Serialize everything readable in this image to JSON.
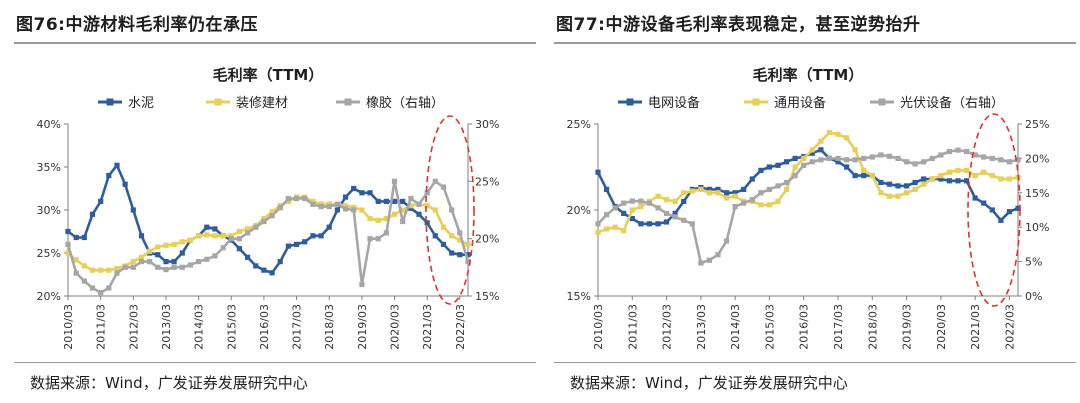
{
  "figures": [
    {
      "number": "图76:",
      "caption": "中游材料毛利率仍在承压",
      "source": "数据来源：Wind，广发证券发展研究中心"
    },
    {
      "number": "图77:",
      "caption": "中游设备毛利率表现稳定，甚至逆势抬升",
      "source": "数据来源：Wind，广发证券发展研究中心"
    }
  ],
  "chart_data": [
    {
      "type": "line",
      "title": "毛利率（TTM）",
      "x_tick_labels": [
        "2010/03",
        "2011/03",
        "2012/03",
        "2013/03",
        "2014/03",
        "2015/03",
        "2016/03",
        "2017/03",
        "2018/03",
        "2019/03",
        "2020/03",
        "2021/03",
        "2022/03"
      ],
      "x": [
        2010.0,
        2010.25,
        2010.5,
        2010.75,
        2011.0,
        2011.25,
        2011.5,
        2011.75,
        2012.0,
        2012.25,
        2012.5,
        2012.75,
        2013.0,
        2013.25,
        2013.5,
        2013.75,
        2014.0,
        2014.25,
        2014.5,
        2014.75,
        2015.0,
        2015.25,
        2015.5,
        2015.75,
        2016.0,
        2016.25,
        2016.5,
        2016.75,
        2017.0,
        2017.25,
        2017.5,
        2017.75,
        2018.0,
        2018.25,
        2018.5,
        2018.75,
        2019.0,
        2019.25,
        2019.5,
        2019.75,
        2020.0,
        2020.25,
        2020.5,
        2020.75,
        2021.0,
        2021.25,
        2021.5,
        2021.75,
        2022.0,
        2022.25
      ],
      "y_left": {
        "min": 20,
        "max": 40,
        "ticks": [
          "20%",
          "25%",
          "30%",
          "35%",
          "40%"
        ]
      },
      "y_right": {
        "min": 15,
        "max": 30,
        "ticks": [
          "15%",
          "20%",
          "25%",
          "30%"
        ]
      },
      "series": [
        {
          "name": "水泥",
          "axis": "left",
          "color": "#2e5d9e",
          "marker": "square",
          "values": [
            27.5,
            26.8,
            26.8,
            29.5,
            31.0,
            34.0,
            35.2,
            33.0,
            30.0,
            27.0,
            25.0,
            24.8,
            24.0,
            24.0,
            25.0,
            26.5,
            27.0,
            28.0,
            27.8,
            27.0,
            26.5,
            25.5,
            24.5,
            23.5,
            23.0,
            22.7,
            24.0,
            25.8,
            26.0,
            26.3,
            27.0,
            27.0,
            28.0,
            30.0,
            31.5,
            32.5,
            32.0,
            32.0,
            31.0,
            31.0,
            31.0,
            31.0,
            30.2,
            29.5,
            28.5,
            27.0,
            26.0,
            25.0,
            24.8,
            24.8
          ]
        },
        {
          "name": "装修建材",
          "axis": "left",
          "color": "#e8cf5a",
          "marker": "square",
          "values": [
            25.0,
            24.2,
            23.5,
            23.0,
            23.0,
            23.0,
            23.2,
            23.5,
            24.0,
            24.5,
            25.2,
            25.7,
            25.9,
            26.0,
            26.3,
            26.5,
            27.0,
            27.1,
            27.0,
            27.0,
            27.0,
            27.5,
            27.8,
            28.2,
            29.0,
            29.8,
            30.5,
            31.0,
            31.5,
            31.5,
            31.0,
            30.7,
            30.7,
            30.7,
            30.5,
            30.3,
            30.0,
            29.0,
            28.8,
            29.0,
            29.5,
            30.0,
            30.5,
            30.7,
            30.5,
            30.0,
            28.0,
            27.0,
            26.5,
            26.0
          ]
        },
        {
          "name": "橡胶（右轴）",
          "axis": "right",
          "color": "#a6a6a6",
          "marker": "square",
          "values": [
            19.5,
            17.0,
            16.3,
            15.7,
            15.3,
            15.7,
            17.0,
            17.5,
            17.5,
            18.0,
            18.0,
            17.5,
            17.3,
            17.5,
            17.5,
            17.7,
            18.0,
            18.2,
            18.5,
            19.2,
            20.0,
            20.0,
            20.5,
            21.0,
            21.5,
            22.0,
            22.7,
            23.5,
            23.5,
            23.5,
            23.0,
            22.8,
            22.8,
            23.0,
            22.6,
            22.5,
            16.0,
            20.0,
            20.0,
            20.5,
            25.0,
            21.5,
            23.5,
            23.0,
            24.0,
            25.0,
            24.5,
            22.5,
            20.5,
            18.0
          ]
        }
      ],
      "highlight": "2021/03–2022/03"
    },
    {
      "type": "line",
      "title": "毛利率（TTM）",
      "x_tick_labels": [
        "2010/03",
        "2011/03",
        "2012/03",
        "2013/03",
        "2014/03",
        "2015/03",
        "2016/03",
        "2017/03",
        "2018/03",
        "2019/03",
        "2020/03",
        "2021/03",
        "2022/03"
      ],
      "x": [
        2010.0,
        2010.25,
        2010.5,
        2010.75,
        2011.0,
        2011.25,
        2011.5,
        2011.75,
        2012.0,
        2012.25,
        2012.5,
        2012.75,
        2013.0,
        2013.25,
        2013.5,
        2013.75,
        2014.0,
        2014.25,
        2014.5,
        2014.75,
        2015.0,
        2015.25,
        2015.5,
        2015.75,
        2016.0,
        2016.25,
        2016.5,
        2016.75,
        2017.0,
        2017.25,
        2017.5,
        2017.75,
        2018.0,
        2018.25,
        2018.5,
        2018.75,
        2019.0,
        2019.25,
        2019.5,
        2019.75,
        2020.0,
        2020.25,
        2020.5,
        2020.75,
        2021.0,
        2021.25,
        2021.5,
        2021.75,
        2022.0,
        2022.25
      ],
      "y_left": {
        "min": 15,
        "max": 25,
        "ticks": [
          "15%",
          "20%",
          "25%"
        ]
      },
      "y_right": {
        "min": 0,
        "max": 25,
        "ticks": [
          "0%",
          "5%",
          "10%",
          "15%",
          "20%",
          "25%"
        ]
      },
      "series": [
        {
          "name": "电网设备",
          "axis": "left",
          "color": "#2e5d9e",
          "marker": "square",
          "values": [
            22.2,
            21.2,
            20.2,
            19.8,
            19.5,
            19.2,
            19.2,
            19.2,
            19.3,
            19.8,
            20.5,
            21.2,
            21.3,
            21.2,
            21.2,
            21.0,
            21.0,
            21.2,
            21.8,
            22.3,
            22.5,
            22.6,
            22.8,
            23.0,
            23.1,
            23.3,
            23.5,
            23.0,
            22.8,
            22.5,
            22.0,
            22.0,
            22.0,
            21.6,
            21.5,
            21.4,
            21.4,
            21.6,
            21.8,
            21.8,
            21.8,
            21.7,
            21.7,
            21.7,
            20.7,
            20.4,
            20.0,
            19.4,
            19.9,
            20.1
          ]
        },
        {
          "name": "通用设备",
          "axis": "left",
          "color": "#e8cf5a",
          "marker": "square",
          "values": [
            18.7,
            18.9,
            19.0,
            18.8,
            20.0,
            20.2,
            20.5,
            20.8,
            20.6,
            20.5,
            21.0,
            21.1,
            21.2,
            21.0,
            21.0,
            20.7,
            20.8,
            20.5,
            20.5,
            20.3,
            20.3,
            20.5,
            21.2,
            22.5,
            23.0,
            23.5,
            24.0,
            24.5,
            24.4,
            24.2,
            23.5,
            22.3,
            22.0,
            21.0,
            20.8,
            20.8,
            21.0,
            21.2,
            21.5,
            21.8,
            22.0,
            22.2,
            22.3,
            22.3,
            22.0,
            22.2,
            22.0,
            21.8,
            21.8,
            21.9
          ]
        },
        {
          "name": "光伏设备（右轴）",
          "axis": "right",
          "color": "#a6a6a6",
          "marker": "square",
          "values": [
            10.5,
            11.8,
            12.8,
            13.5,
            13.8,
            13.8,
            13.5,
            12.8,
            12.0,
            11.5,
            11.0,
            10.5,
            4.8,
            5.2,
            6.0,
            8.0,
            13.0,
            13.5,
            14.0,
            15.0,
            15.5,
            16.0,
            16.5,
            17.5,
            19.0,
            19.5,
            19.8,
            20.0,
            20.0,
            19.8,
            19.8,
            20.0,
            20.2,
            20.5,
            20.3,
            20.0,
            19.5,
            19.2,
            19.5,
            20.0,
            20.5,
            21.0,
            21.2,
            21.0,
            20.5,
            20.2,
            20.0,
            19.8,
            19.5,
            19.8
          ]
        }
      ],
      "highlight": "2021/03–2022/03"
    }
  ]
}
